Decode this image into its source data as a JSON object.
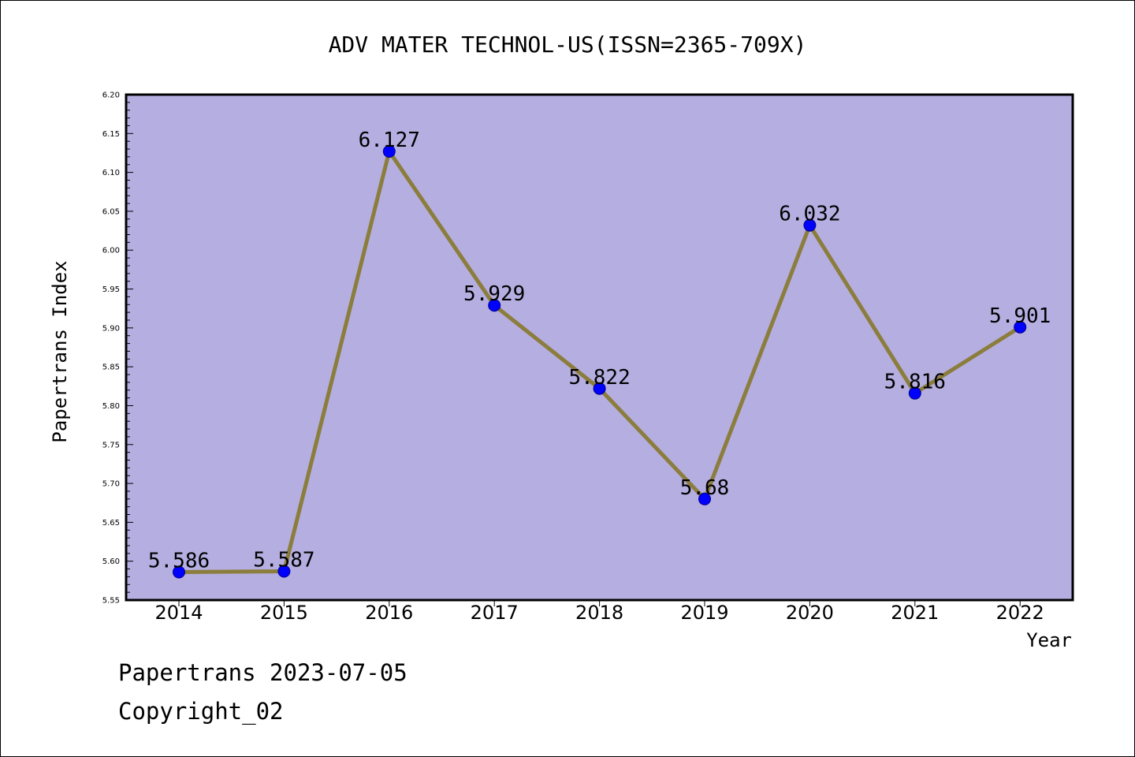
{
  "chart_data": {
    "type": "line",
    "title": "ADV MATER TECHNOL-US(ISSN=2365-709X)",
    "xlabel": "Year",
    "ylabel": "Papertrans Index",
    "categories": [
      "2014",
      "2015",
      "2016",
      "2017",
      "2018",
      "2019",
      "2020",
      "2021",
      "2022"
    ],
    "values": [
      5.586,
      5.587,
      6.127,
      5.929,
      5.822,
      5.68,
      6.032,
      5.816,
      5.901
    ],
    "data_labels": [
      "5.586",
      "5.587",
      "6.127",
      "5.929",
      "5.822",
      "5.68",
      "6.032",
      "5.816",
      "5.901"
    ],
    "ylim": [
      5.55,
      6.2
    ],
    "yticks": [
      "5.55",
      "5.60",
      "5.65",
      "5.70",
      "5.75",
      "5.80",
      "5.85",
      "5.90",
      "5.95",
      "6.00",
      "6.05",
      "6.10",
      "6.15",
      "6.20"
    ],
    "grid": false,
    "legend": "none",
    "colors": {
      "plot_background": "#b5aee1",
      "line": "#8b7d3c",
      "marker": "#0000ff"
    }
  },
  "footer": {
    "date_line": "Papertrans 2023-07-05",
    "copyright_line": "Copyright_02"
  }
}
